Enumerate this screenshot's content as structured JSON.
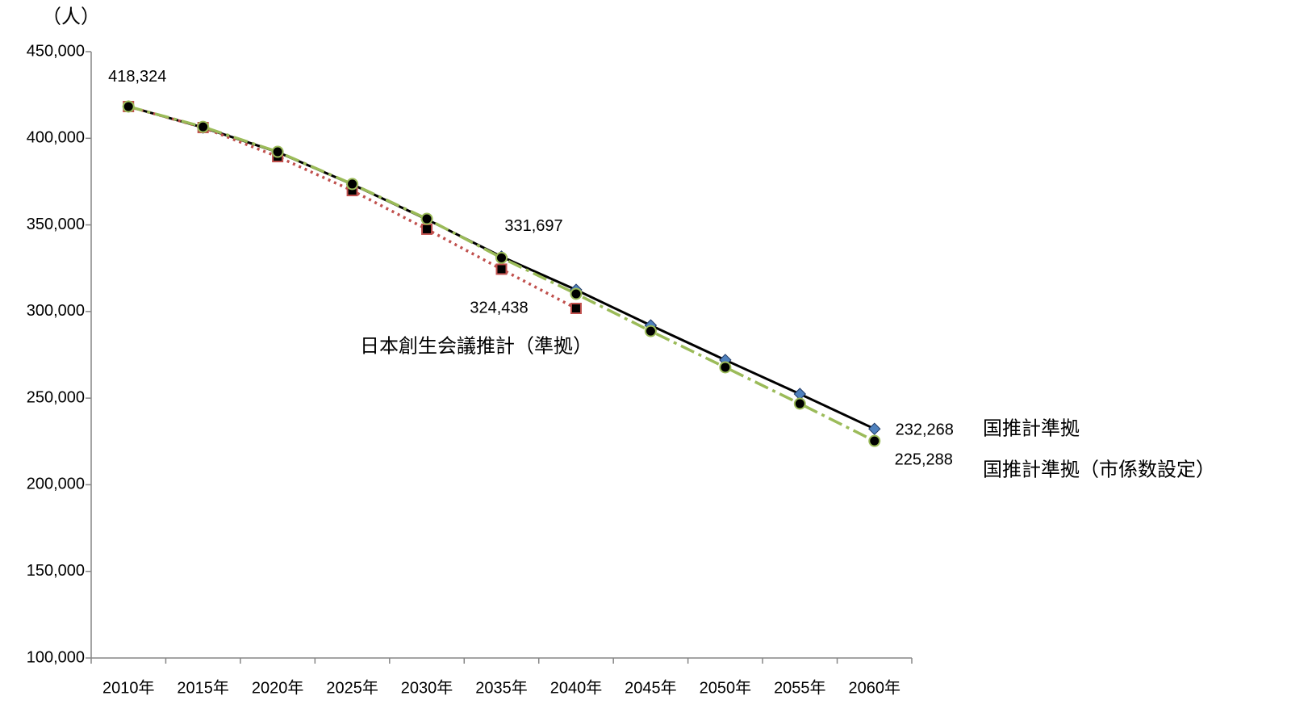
{
  "chart_data": {
    "type": "line",
    "y_label": "（人）",
    "categories": [
      "2010年",
      "2015年",
      "2020年",
      "2025年",
      "2030年",
      "2035年",
      "2040年",
      "2045年",
      "2050年",
      "2055年",
      "2060年"
    ],
    "series": [
      {
        "name": "国推計準拠",
        "color": "#000000",
        "marker": "diamond",
        "marker_color": "#4f81bd",
        "line_style": "solid",
        "values": [
          418324,
          406200,
          392000,
          373400,
          353200,
          331697,
          312500,
          292000,
          272000,
          252400,
          232268
        ],
        "value_labels": [
          "418,324",
          null,
          null,
          null,
          null,
          "331,697",
          null,
          null,
          null,
          null,
          "232,268"
        ]
      },
      {
        "name": "日本創生会議推計（準拠）",
        "color": "#c0504d",
        "marker": "square",
        "marker_color": "#c0504d",
        "line_style": "dotted",
        "values": [
          418324,
          406200,
          389400,
          369800,
          347500,
          324438,
          301800,
          null,
          null,
          null,
          null
        ],
        "value_labels": [
          null,
          null,
          null,
          null,
          null,
          "324,438",
          null,
          null,
          null,
          null,
          null
        ]
      },
      {
        "name": "国推計準拠（市係数設定）",
        "color": "#9bbb59",
        "marker": "circle",
        "marker_color": "#9bbb59",
        "line_style": "dashdot",
        "values": [
          418324,
          406600,
          392200,
          373600,
          353500,
          331000,
          310200,
          288700,
          267800,
          246800,
          225288
        ],
        "value_labels": [
          null,
          null,
          null,
          null,
          null,
          null,
          null,
          null,
          null,
          null,
          "225,288"
        ]
      }
    ],
    "ylim": [
      100000,
      450000
    ],
    "yticks": [
      {
        "value": 100000,
        "label": "100,000"
      },
      {
        "value": 150000,
        "label": "150,000"
      },
      {
        "value": 200000,
        "label": "200,000"
      },
      {
        "value": 250000,
        "label": "250,000"
      },
      {
        "value": 300000,
        "label": "300,000"
      },
      {
        "value": 350000,
        "label": "350,000"
      },
      {
        "value": 400000,
        "label": "400,000"
      },
      {
        "value": 450000,
        "label": "450,000"
      }
    ],
    "grid": false
  }
}
